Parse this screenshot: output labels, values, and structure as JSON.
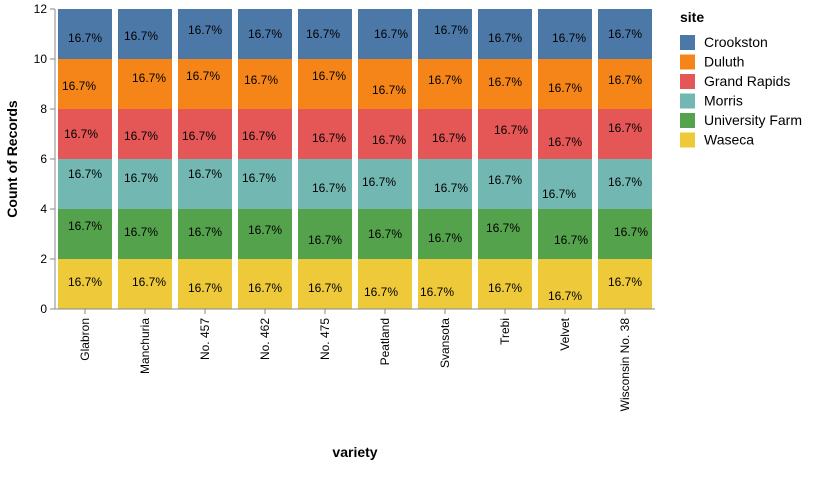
{
  "chart_data": {
    "type": "bar",
    "stacked": true,
    "xlabel": "variety",
    "ylabel": "Count of Records",
    "ylim": [
      0,
      12
    ],
    "yticks": [
      0,
      2,
      4,
      6,
      8,
      10,
      12
    ],
    "grid": false,
    "legend_title": "site",
    "legend_placement": "right",
    "categories": [
      "Glabron",
      "Manchuria",
      "No. 457",
      "No. 462",
      "No. 475",
      "Peatland",
      "Svansota",
      "Trebi",
      "Velvet",
      "Wisconsin No. 38"
    ],
    "series": [
      {
        "name": "Waseca",
        "color": "#eeca3b",
        "values": [
          2,
          2,
          2,
          2,
          2,
          2,
          2,
          2,
          2,
          2
        ],
        "labels": [
          "16.7%",
          "16.7%",
          "16.7%",
          "16.7%",
          "16.7%",
          "16.7%",
          "16.7%",
          "16.7%",
          "16.7%",
          "16.7%"
        ]
      },
      {
        "name": "University Farm",
        "color": "#54a24b",
        "values": [
          2,
          2,
          2,
          2,
          2,
          2,
          2,
          2,
          2,
          2
        ],
        "labels": [
          "16.7%",
          "16.7%",
          "16.7%",
          "16.7%",
          "16.7%",
          "16.7%",
          "16.7%",
          "16.7%",
          "16.7%",
          "16.7%"
        ]
      },
      {
        "name": "Morris",
        "color": "#72b7b2",
        "values": [
          2,
          2,
          2,
          2,
          2,
          2,
          2,
          2,
          2,
          2
        ],
        "labels": [
          "16.7%",
          "16.7%",
          "16.7%",
          "16.7%",
          "16.7%",
          "16.7%",
          "16.7%",
          "16.7%",
          "16.7%",
          "16.7%"
        ]
      },
      {
        "name": "Grand Rapids",
        "color": "#e45756",
        "values": [
          2,
          2,
          2,
          2,
          2,
          2,
          2,
          2,
          2,
          2
        ],
        "labels": [
          "16.7%",
          "16.7%",
          "16.7%",
          "16.7%",
          "16.7%",
          "16.7%",
          "16.7%",
          "16.7%",
          "16.7%",
          "16.7%"
        ]
      },
      {
        "name": "Duluth",
        "color": "#f58518",
        "values": [
          2,
          2,
          2,
          2,
          2,
          2,
          2,
          2,
          2,
          2
        ],
        "labels": [
          "16.7%",
          "16.7%",
          "16.7%",
          "16.7%",
          "16.7%",
          "16.7%",
          "16.7%",
          "16.7%",
          "16.7%",
          "16.7%"
        ]
      },
      {
        "name": "Crookston",
        "color": "#4c78a8",
        "values": [
          2,
          2,
          2,
          2,
          2,
          2,
          2,
          2,
          2,
          2
        ],
        "labels": [
          "16.7%",
          "16.7%",
          "16.7%",
          "16.7%",
          "16.7%",
          "16.7%",
          "16.7%",
          "16.7%",
          "16.7%",
          "16.7%"
        ]
      }
    ],
    "legend_order": [
      "Crookston",
      "Duluth",
      "Grand Rapids",
      "Morris",
      "University Farm",
      "Waseca"
    ]
  }
}
